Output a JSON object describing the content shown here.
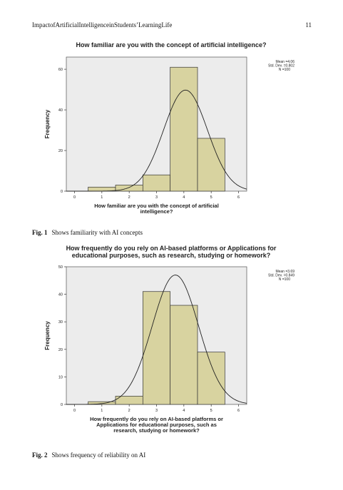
{
  "header": {
    "running_title": "ImpactofArtificialIntelligenceinStudents’LearningLife",
    "page_number": "11"
  },
  "figures": [
    {
      "fig_label": "Fig. 1",
      "caption_text": "Shows familiarity with AI concepts",
      "stats": {
        "mean": "Mean =4.06",
        "sd": "Std. Dev. =0.802",
        "n": "N =100"
      }
    },
    {
      "fig_label": "Fig. 2",
      "caption_text": "Shows frequency of reliability on AI",
      "stats": {
        "mean": "Mean =3.69",
        "sd": "Std. Dev. =0.849",
        "n": "N =100"
      }
    }
  ],
  "colors": {
    "bar_fill": "#d8d3a0",
    "bar_stroke": "#333333",
    "plot_bg": "#ececec",
    "curve": "#222222"
  },
  "chart_data": [
    {
      "type": "bar",
      "title_lines": [
        "How familiar are you with the concept of artificial intelligence?"
      ],
      "xlabel_lines": [
        "How familiar are you with the concept of artificial",
        "intelligence?"
      ],
      "ylabel": "Frequency",
      "x_ticks": [
        0,
        1,
        2,
        3,
        4,
        5,
        6
      ],
      "y_ticks": [
        0,
        20,
        40,
        60
      ],
      "xlim": [
        -0.3,
        6.3
      ],
      "ylim": [
        0,
        66
      ],
      "categories": [
        1,
        2,
        3,
        4,
        5
      ],
      "values": [
        2,
        3,
        8,
        61,
        26
      ],
      "normal_curve": {
        "mean": 4.06,
        "sd": 0.802,
        "n": 100
      },
      "grid": false,
      "legend": "top-right stats box"
    },
    {
      "type": "bar",
      "title_lines": [
        "How frequently do you rely on AI-based platforms or Applications for",
        "educational purposes, such as research, studying or homework?"
      ],
      "xlabel_lines": [
        "How frequently do you rely on AI-based platforms or",
        "Applications for educational purposes, such as",
        "research, studying or homework?"
      ],
      "ylabel": "Frequency",
      "x_ticks": [
        0,
        1,
        2,
        3,
        4,
        5,
        6
      ],
      "y_ticks": [
        0,
        10,
        20,
        30,
        40,
        50
      ],
      "xlim": [
        -0.3,
        6.3
      ],
      "ylim": [
        0,
        50
      ],
      "categories": [
        1,
        2,
        3,
        4,
        5
      ],
      "values": [
        1,
        3,
        41,
        36,
        19
      ],
      "normal_curve": {
        "mean": 3.69,
        "sd": 0.849,
        "n": 100
      },
      "grid": false,
      "legend": "top-right stats box"
    }
  ]
}
